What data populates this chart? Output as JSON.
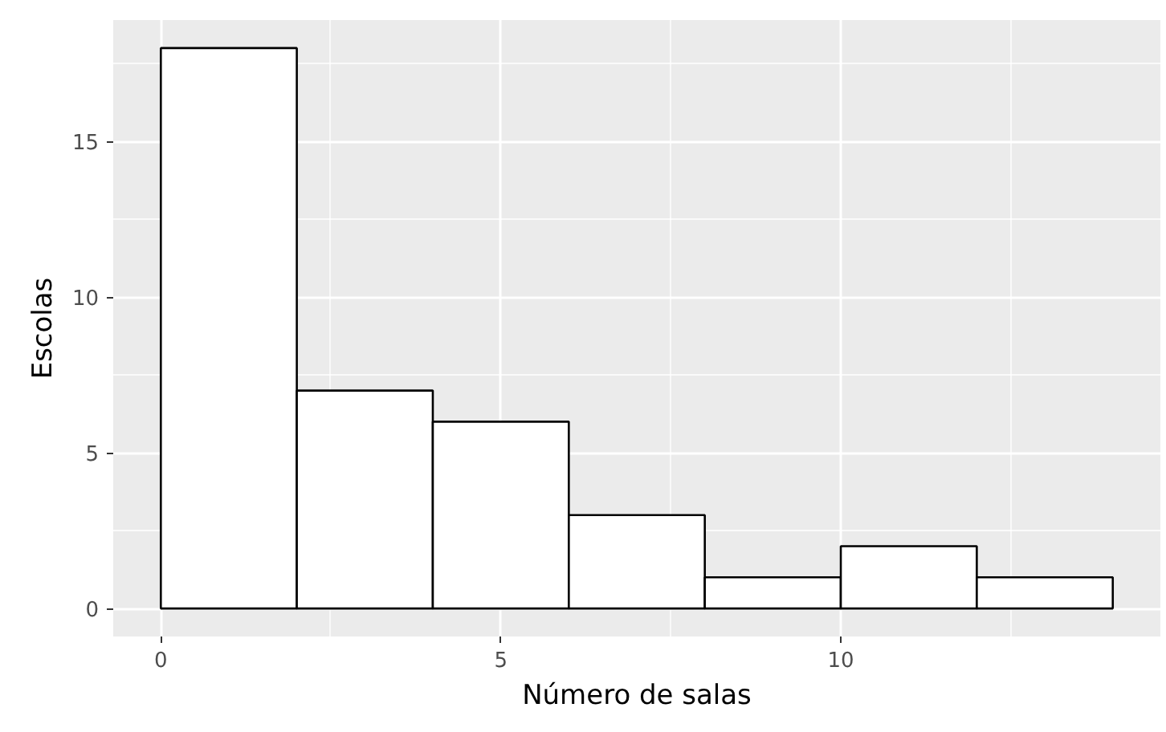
{
  "chart_data": {
    "type": "histogram",
    "xlabel": "Número de salas",
    "ylabel": "Escolas",
    "bins": [
      0,
      2,
      4,
      6,
      8,
      10,
      12,
      14
    ],
    "values": [
      18,
      7,
      6,
      3,
      1,
      2,
      1
    ],
    "color": "#ffffff",
    "xlim": [
      -0.7,
      14.7
    ],
    "ylim": [
      -0.9,
      18.9
    ],
    "xticks": [
      0,
      5,
      10
    ],
    "yticks": [
      0,
      5,
      10,
      15
    ],
    "grid": true
  }
}
